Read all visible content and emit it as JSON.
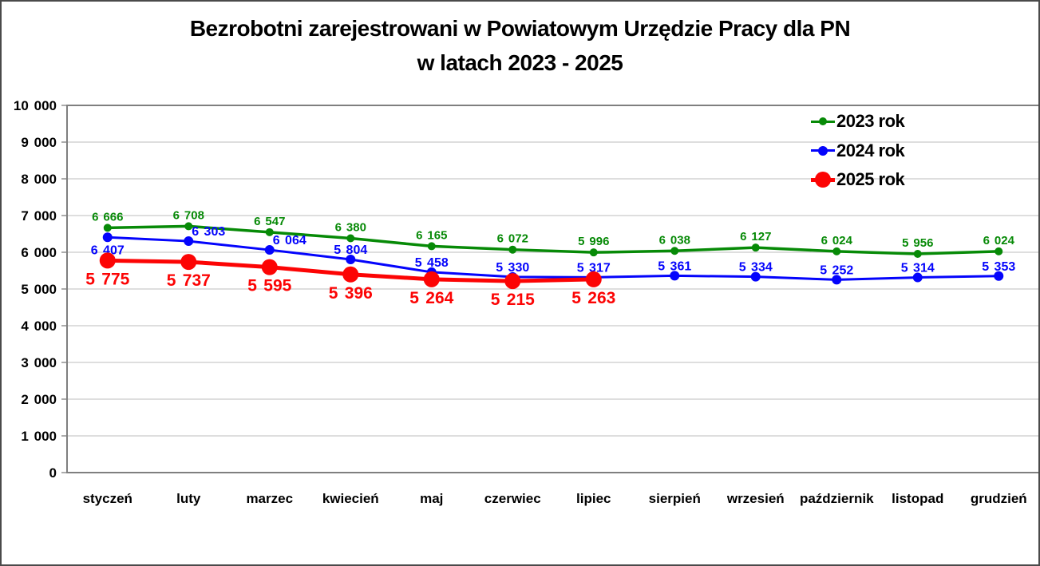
{
  "title": {
    "line1": "Bezrobotni zarejestrowani w Powiatowym Urzędzie Pracy dla PN",
    "line2": "w latach 2023 - 2025"
  },
  "chart_data": {
    "type": "line",
    "title": "Bezrobotni zarejestrowani w Powiatowym Urzędzie Pracy dla PN w latach 2023 - 2025",
    "xlabel": "",
    "ylabel": "",
    "categories": [
      "styczeń",
      "luty",
      "marzec",
      "kwiecień",
      "maj",
      "czerwiec",
      "lipiec",
      "sierpień",
      "wrzesień",
      "październik",
      "listopad",
      "grudzień"
    ],
    "series": [
      {
        "name": "2023 rok",
        "color": "#078a07",
        "values": [
          6666,
          6708,
          6547,
          6380,
          6165,
          6072,
          5996,
          6038,
          6127,
          6024,
          5956,
          6024
        ]
      },
      {
        "name": "2024 rok",
        "color": "#0404fc",
        "values": [
          6407,
          6303,
          6064,
          5804,
          5458,
          5330,
          5317,
          5361,
          5334,
          5252,
          5314,
          5353
        ]
      },
      {
        "name": "2025 rok",
        "color": "#fc0404",
        "values": [
          5775,
          5737,
          5595,
          5396,
          5264,
          5215,
          5263
        ]
      }
    ],
    "ylim": [
      0,
      10000
    ],
    "ytick_step": 1000,
    "grid": true,
    "gridline_color": "#c9c9c9",
    "axis_color": "#7f7f7f",
    "legend_position": "top-right",
    "number_format": "space-thousands",
    "data_labels": true
  }
}
